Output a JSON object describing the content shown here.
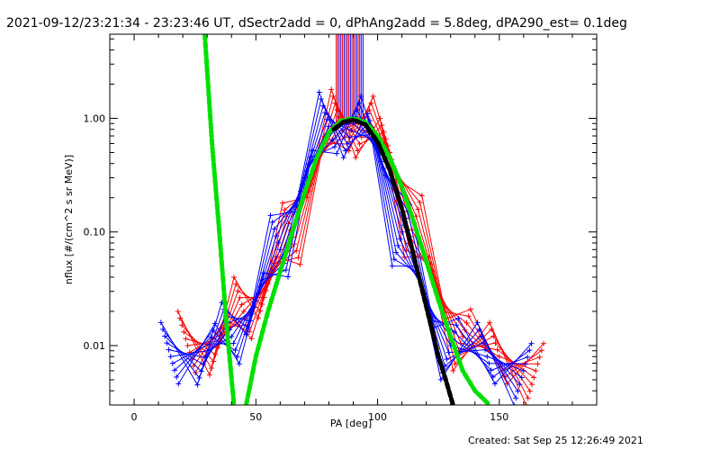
{
  "chart_data": {
    "type": "line",
    "title": "2021-09-12/23:21:34 - 23:23:46 UT, dSectr2add = 0, dPhAng2add = 5.8deg, dPA290_est=  0.1deg",
    "xlabel": "PA [deg]",
    "ylabel": "nflux [#/(cm^2 s sr MeV)]",
    "xlim": [
      -10,
      190
    ],
    "ylim": [
      0.003,
      5.5
    ],
    "yscale": "log",
    "grid": false,
    "x_ticks": [
      0,
      50,
      100,
      150
    ],
    "x_tick_labels": [
      "0",
      "50",
      "100",
      "150"
    ],
    "y_ticks": [
      0.01,
      0.1,
      1.0
    ],
    "y_tick_labels": [
      "0.01",
      "0.10",
      "1.00"
    ],
    "series": [
      {
        "color": "#ff0000",
        "marker": "plus",
        "x": [
          22,
          35,
          45,
          55,
          65,
          75,
          85,
          95,
          105,
          115,
          125,
          135,
          150,
          165
        ],
        "y": [
          0.01,
          0.011,
          0.02,
          0.035,
          0.09,
          0.4,
          0.9,
          0.9,
          0.5,
          0.12,
          0.03,
          0.012,
          0.008,
          0.006
        ]
      },
      {
        "color": "#0000ff",
        "marker": "plus",
        "x": [
          15,
          30,
          40,
          50,
          60,
          70,
          80,
          90,
          100,
          110,
          120,
          130,
          145,
          160
        ],
        "y": [
          0.008,
          0.009,
          0.012,
          0.025,
          0.07,
          0.3,
          0.85,
          0.9,
          0.55,
          0.1,
          0.025,
          0.01,
          0.008,
          0.006
        ]
      },
      {
        "color": "#00e000",
        "style": "dashed",
        "x": [
          29,
          32,
          35,
          38,
          41
        ],
        "y": [
          5.5,
          0.6,
          0.1,
          0.015,
          0.003
        ]
      },
      {
        "color": "#00e000",
        "style": "dashed",
        "x": [
          46,
          50,
          55,
          60,
          65,
          70,
          75,
          80,
          85,
          90,
          95,
          100,
          105,
          110,
          115,
          120,
          125,
          130,
          135,
          140,
          146
        ],
        "y": [
          0.003,
          0.008,
          0.02,
          0.045,
          0.1,
          0.22,
          0.45,
          0.75,
          0.95,
          1.0,
          0.92,
          0.7,
          0.45,
          0.25,
          0.12,
          0.055,
          0.025,
          0.012,
          0.006,
          0.004,
          0.003
        ]
      },
      {
        "color": "#000000",
        "style": "dashed",
        "x": [
          82,
          86,
          90,
          95,
          100,
          105,
          110,
          115,
          120,
          125,
          128,
          131
        ],
        "y": [
          0.8,
          0.93,
          0.97,
          0.88,
          0.62,
          0.35,
          0.16,
          0.06,
          0.022,
          0.008,
          0.005,
          0.003
        ]
      }
    ],
    "annotations": [
      {
        "text": "tall vertical lines near PA 90",
        "x_range": [
          83,
          94
        ],
        "color_mix": [
          "#ff0000",
          "#0000ff"
        ]
      }
    ]
  },
  "footer": {
    "created": "Created: Sat Sep 25 12:26:49 2021"
  }
}
